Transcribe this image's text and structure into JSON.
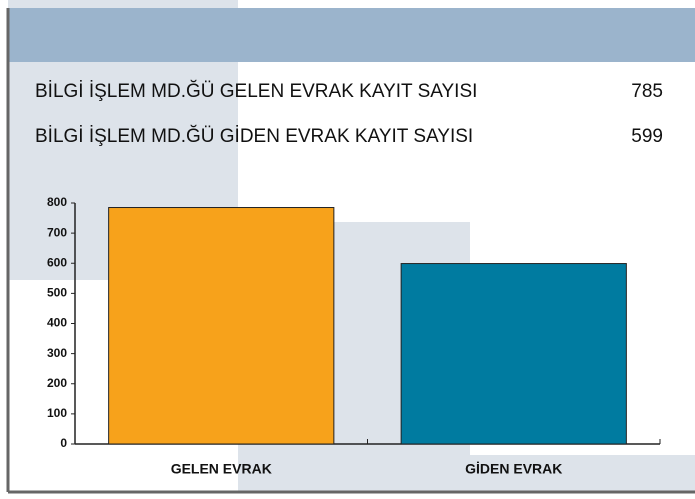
{
  "rows": [
    {
      "label": "BİLGİ İŞLEM MD.ĞÜ GELEN EVRAK KAYIT SAYISI",
      "value": 785
    },
    {
      "label": "BİLGİ İŞLEM MD.ĞÜ GİDEN EVRAK KAYIT SAYISI",
      "value": 599
    }
  ],
  "chart_data": {
    "type": "bar",
    "categories": [
      "GELEN EVRAK",
      "GİDEN EVRAK"
    ],
    "values": [
      785,
      599
    ],
    "colors": [
      "#f7a21b",
      "#007ba0"
    ],
    "ylim": [
      0,
      800
    ],
    "yticks": [
      0,
      100,
      200,
      300,
      400,
      500,
      600,
      700,
      800
    ]
  }
}
